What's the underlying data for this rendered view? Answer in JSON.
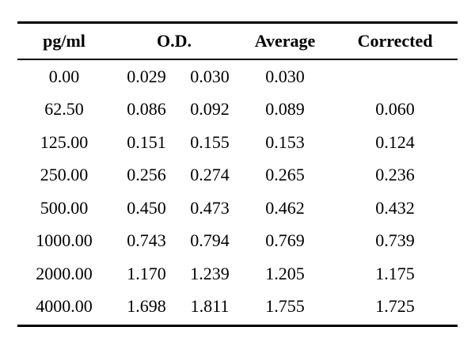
{
  "table": {
    "headers": {
      "concentration": "pg/ml",
      "od": "O.D.",
      "average": "Average",
      "corrected": "Corrected"
    },
    "rows": [
      {
        "conc": "0.00",
        "od1": "0.029",
        "od2": "0.030",
        "avg": "0.030",
        "corrected": ""
      },
      {
        "conc": "62.50",
        "od1": "0.086",
        "od2": "0.092",
        "avg": "0.089",
        "corrected": "0.060"
      },
      {
        "conc": "125.00",
        "od1": "0.151",
        "od2": "0.155",
        "avg": "0.153",
        "corrected": "0.124"
      },
      {
        "conc": "250.00",
        "od1": "0.256",
        "od2": "0.274",
        "avg": "0.265",
        "corrected": "0.236"
      },
      {
        "conc": "500.00",
        "od1": "0.450",
        "od2": "0.473",
        "avg": "0.462",
        "corrected": "0.432"
      },
      {
        "conc": "1000.00",
        "od1": "0.743",
        "od2": "0.794",
        "avg": "0.769",
        "corrected": "0.739"
      },
      {
        "conc": "2000.00",
        "od1": "1.170",
        "od2": "1.239",
        "avg": "1.205",
        "corrected": "1.175"
      },
      {
        "conc": "4000.00",
        "od1": "1.698",
        "od2": "1.811",
        "avg": "1.755",
        "corrected": "1.725"
      }
    ]
  }
}
